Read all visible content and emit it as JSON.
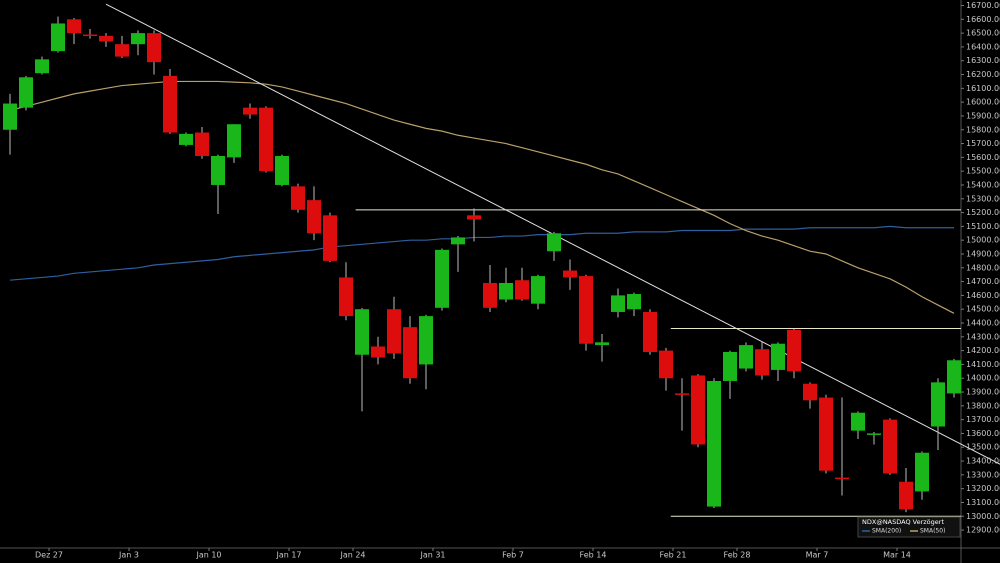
{
  "chart_data": {
    "type": "candlestick",
    "categories": [
      null,
      null,
      "Dez 27",
      null,
      null,
      null,
      null,
      "Jan 3",
      null,
      null,
      null,
      null,
      "Jan 10",
      null,
      null,
      null,
      null,
      "Jan 17",
      null,
      null,
      null,
      "Jan 24",
      null,
      null,
      null,
      null,
      "Jan 31",
      null,
      null,
      null,
      null,
      "Feb 7",
      null,
      null,
      null,
      null,
      "Feb 14",
      null,
      null,
      null,
      null,
      "Feb 21",
      null,
      null,
      null,
      "Feb 28",
      null,
      null,
      null,
      null,
      "Mar 7",
      null,
      null,
      null,
      null,
      "Mar 14",
      null,
      null,
      null,
      null
    ],
    "open": [
      15800,
      15960,
      16210,
      16370,
      16600,
      16490,
      16480,
      16420,
      16420,
      16500,
      16190,
      15690,
      15780,
      15400,
      15600,
      15960,
      15960,
      15400,
      15390,
      15290,
      15180,
      14730,
      14170,
      14230,
      14500,
      14370,
      14100,
      14510,
      14970,
      15180,
      14690,
      14570,
      14710,
      14540,
      14920,
      14780,
      14740,
      14240,
      14480,
      14500,
      14480,
      14200,
      13890,
      14020,
      13070,
      13980,
      14070,
      14210,
      14060,
      14350,
      13960,
      13860,
      13280,
      13620,
      13590,
      13700,
      13250,
      13180,
      13650,
      13890
    ],
    "high": [
      16060,
      16190,
      16330,
      16620,
      16610,
      16530,
      16500,
      16480,
      16520,
      16520,
      16240,
      15780,
      15820,
      15620,
      15840,
      15990,
      15970,
      15620,
      15410,
      15390,
      15200,
      14840,
      14510,
      14300,
      14590,
      14450,
      14460,
      14940,
      15030,
      15230,
      14820,
      14800,
      14800,
      14750,
      15060,
      14860,
      14750,
      14320,
      14650,
      14620,
      14500,
      14220,
      14000,
      14030,
      14000,
      14200,
      14260,
      14270,
      14260,
      14360,
      13970,
      13880,
      13860,
      13760,
      13610,
      13710,
      13350,
      13470,
      14000,
      14140
    ],
    "low": [
      15620,
      15940,
      16200,
      16360,
      16420,
      16460,
      16400,
      16320,
      16340,
      16200,
      15770,
      15680,
      15590,
      15190,
      15560,
      15880,
      15490,
      15390,
      15200,
      15000,
      14840,
      14420,
      13760,
      14100,
      14140,
      13960,
      13920,
      14490,
      14770,
      14990,
      14480,
      14550,
      14560,
      14500,
      14850,
      14640,
      14200,
      14120,
      14440,
      14450,
      14170,
      13910,
      13620,
      13500,
      13060,
      13850,
      14050,
      13990,
      13980,
      14000,
      13780,
      13310,
      13150,
      13560,
      13520,
      13300,
      13030,
      13120,
      13480,
      13860
    ],
    "close": [
      15990,
      16180,
      16310,
      16570,
      16500,
      16480,
      16440,
      16330,
      16500,
      16290,
      15780,
      15770,
      15610,
      15610,
      15840,
      15910,
      15500,
      15610,
      15220,
      15050,
      14850,
      14450,
      14500,
      14150,
      14180,
      14000,
      14450,
      14930,
      15020,
      15150,
      14510,
      14690,
      14570,
      14740,
      15050,
      14730,
      14250,
      14260,
      14600,
      14610,
      14190,
      14000,
      13880,
      13520,
      13980,
      14190,
      14240,
      14020,
      14250,
      14050,
      13840,
      13330,
      13270,
      13750,
      13600,
      13310,
      13050,
      13460,
      13970,
      14130
    ],
    "up_color": "#19b719",
    "down_color": "#dd0d0d",
    "overlays": [
      {
        "name": "SMA(200)",
        "color": "#2f5f9e",
        "values": [
          14710,
          14720,
          14730,
          14740,
          14760,
          14770,
          14780,
          14790,
          14800,
          14820,
          14830,
          14840,
          14850,
          14860,
          14880,
          14890,
          14900,
          14910,
          14920,
          14930,
          14950,
          14960,
          14970,
          14980,
          14990,
          15000,
          15000,
          15010,
          15010,
          15020,
          15020,
          15030,
          15030,
          15040,
          15040,
          15040,
          15050,
          15050,
          15050,
          15060,
          15060,
          15060,
          15070,
          15070,
          15070,
          15070,
          15080,
          15080,
          15080,
          15080,
          15090,
          15090,
          15090,
          15090,
          15090,
          15100,
          15090,
          15090,
          15090,
          15090
        ]
      },
      {
        "name": "SMA(50)",
        "color": "#b8a06a",
        "values": [
          15940,
          15970,
          16000,
          16030,
          16060,
          16080,
          16100,
          16120,
          16130,
          16140,
          16150,
          16150,
          16150,
          16150,
          16145,
          16140,
          16130,
          16110,
          16080,
          16050,
          16020,
          15990,
          15950,
          15910,
          15870,
          15840,
          15810,
          15790,
          15760,
          15740,
          15720,
          15700,
          15670,
          15640,
          15610,
          15580,
          15550,
          15510,
          15480,
          15430,
          15380,
          15330,
          15280,
          15230,
          15180,
          15120,
          15070,
          15030,
          15000,
          14960,
          14920,
          14900,
          14850,
          14800,
          14760,
          14720,
          14660,
          14590,
          14530,
          14470
        ]
      }
    ],
    "trendline": {
      "x": [
        6,
        62
      ],
      "values": [
        16710,
        13370
      ]
    },
    "hlines": [
      {
        "value": 15220,
        "from": 21.6
      },
      {
        "value": 14360,
        "from": 41.3
      },
      {
        "value": 13000,
        "from": 41.3
      }
    ],
    "legend_title": "NDX@NASDAQ Verzögert",
    "ylim": [
      12770,
      16740
    ],
    "yticks": [
      {
        "value": 16700,
        "label": "16700.00"
      },
      {
        "value": 16600,
        "label": "16600.00"
      },
      {
        "value": 16500,
        "label": "16500.00"
      },
      {
        "value": 16400,
        "label": "16400.00"
      },
      {
        "value": 16300,
        "label": "16300.00"
      },
      {
        "value": 16200,
        "label": "16200.00"
      },
      {
        "value": 16100,
        "label": "16100.00"
      },
      {
        "value": 16000,
        "label": "16000.00"
      },
      {
        "value": 15900,
        "label": "15900.00"
      },
      {
        "value": 15800,
        "label": "15800.00"
      },
      {
        "value": 15700,
        "label": "15700.00"
      },
      {
        "value": 15600,
        "label": "15600.00"
      },
      {
        "value": 15500,
        "label": "15500.00"
      },
      {
        "value": 15400,
        "label": "15400.00"
      },
      {
        "value": 15300,
        "label": "15300.00"
      },
      {
        "value": 15200,
        "label": "15200.00"
      },
      {
        "value": 15100,
        "label": "15100.00"
      },
      {
        "value": 15000,
        "label": "15000.00"
      },
      {
        "value": 14900,
        "label": "14900.00"
      },
      {
        "value": 14800,
        "label": "14800.00"
      },
      {
        "value": 14700,
        "label": "14700.00"
      },
      {
        "value": 14600,
        "label": "14600.00"
      },
      {
        "value": 14500,
        "label": "14500.00"
      },
      {
        "value": 14400,
        "label": "14400.00"
      },
      {
        "value": 14300,
        "label": "14300.00"
      },
      {
        "value": 14200,
        "label": "14200.00"
      },
      {
        "value": 14100,
        "label": "14100.00"
      },
      {
        "value": 14000,
        "label": "14000.00"
      },
      {
        "value": 13900,
        "label": "13900.00"
      },
      {
        "value": 13800,
        "label": "13800.00"
      },
      {
        "value": 13700,
        "label": "13700.00"
      },
      {
        "value": 13600,
        "label": "13600.00"
      },
      {
        "value": 13500,
        "label": "13500.00"
      },
      {
        "value": 13400,
        "label": "13400.00"
      },
      {
        "value": 13300,
        "label": "13300.00"
      },
      {
        "value": 13200,
        "label": "13200.00"
      },
      {
        "value": 13100,
        "label": "13100.00"
      },
      {
        "value": 13000,
        "label": "13000.00"
      },
      {
        "value": 12900,
        "label": "12900.00"
      }
    ]
  }
}
